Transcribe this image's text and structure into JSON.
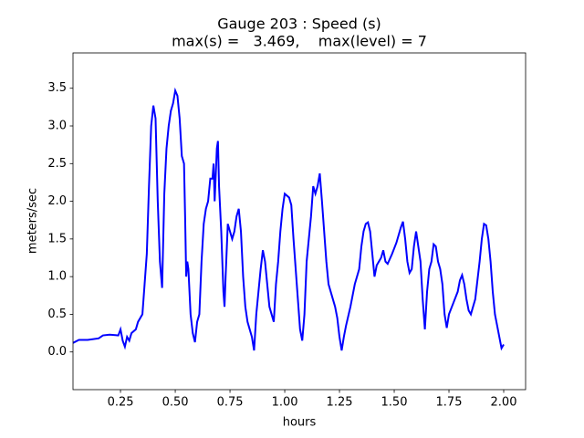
{
  "chart_data": {
    "type": "line",
    "title": "Gauge 203 : Speed (s)",
    "subtitle": "max(s) =   3.469,    max(level) = 7",
    "x_label": "hours",
    "y_label": "meters/sec",
    "color": "#0000ff",
    "xlim": [
      0.033,
      2.1
    ],
    "ylim": [
      -0.5,
      3.969
    ],
    "xticks": [
      0.25,
      {
        "value": 0.5,
        "label": "0.50"
      },
      0.75,
      {
        "value": 1,
        "label": "1.00"
      },
      1.25,
      {
        "value": 1.5,
        "label": "1.50"
      },
      1.75,
      {
        "value": 2,
        "label": "2.00"
      }
    ],
    "yticks": [
      {
        "value": 0,
        "label": "0.0"
      },
      0.5,
      {
        "value": 1,
        "label": "1.0"
      },
      1.5,
      {
        "value": 2,
        "label": "2.0"
      },
      2.5,
      {
        "value": 3,
        "label": "3.0"
      },
      3.5
    ],
    "x": [
      0.033,
      0.06,
      0.1,
      0.15,
      0.17,
      0.2,
      0.24,
      0.25,
      0.26,
      0.27,
      0.28,
      0.29,
      0.3,
      0.32,
      0.33,
      0.35,
      0.36,
      0.37,
      0.38,
      0.39,
      0.4,
      0.41,
      0.42,
      0.43,
      0.44,
      0.45,
      0.46,
      0.47,
      0.48,
      0.49,
      0.5,
      0.51,
      0.52,
      0.53,
      0.54,
      0.545,
      0.55,
      0.555,
      0.56,
      0.57,
      0.58,
      0.59,
      0.6,
      0.61,
      0.62,
      0.63,
      0.64,
      0.65,
      0.66,
      0.67,
      0.675,
      0.68,
      0.69,
      0.695,
      0.7,
      0.71,
      0.72,
      0.725,
      0.73,
      0.74,
      0.75,
      0.76,
      0.77,
      0.78,
      0.79,
      0.8,
      0.81,
      0.82,
      0.83,
      0.84,
      0.85,
      0.86,
      0.87,
      0.88,
      0.89,
      0.9,
      0.91,
      0.92,
      0.93,
      0.94,
      0.95,
      0.96,
      0.97,
      0.98,
      0.99,
      1.0,
      1.02,
      1.03,
      1.04,
      1.06,
      1.07,
      1.08,
      1.09,
      1.1,
      1.11,
      1.12,
      1.13,
      1.14,
      1.15,
      1.16,
      1.17,
      1.18,
      1.19,
      1.2,
      1.21,
      1.22,
      1.23,
      1.24,
      1.25,
      1.26,
      1.27,
      1.28,
      1.3,
      1.32,
      1.34,
      1.35,
      1.36,
      1.37,
      1.38,
      1.39,
      1.4,
      1.41,
      1.42,
      1.43,
      1.44,
      1.45,
      1.46,
      1.47,
      1.49,
      1.51,
      1.53,
      1.54,
      1.55,
      1.56,
      1.57,
      1.58,
      1.59,
      1.6,
      1.61,
      1.62,
      1.63,
      1.64,
      1.65,
      1.66,
      1.67,
      1.68,
      1.69,
      1.7,
      1.71,
      1.72,
      1.73,
      1.74,
      1.75,
      1.77,
      1.79,
      1.8,
      1.81,
      1.82,
      1.83,
      1.84,
      1.85,
      1.87,
      1.89,
      1.9,
      1.91,
      1.92,
      1.93,
      1.94,
      1.95,
      1.96,
      1.97,
      1.98,
      1.99,
      2.0
    ],
    "values": [
      0.12,
      0.16,
      0.16,
      0.18,
      0.22,
      0.23,
      0.22,
      0.3,
      0.15,
      0.07,
      0.2,
      0.15,
      0.25,
      0.3,
      0.4,
      0.5,
      0.9,
      1.3,
      2.2,
      3.0,
      3.27,
      3.1,
      2.0,
      1.2,
      0.85,
      2.1,
      2.7,
      3.0,
      3.2,
      3.3,
      3.469,
      3.4,
      3.1,
      2.6,
      2.5,
      1.8,
      1.0,
      1.2,
      1.1,
      0.5,
      0.25,
      0.13,
      0.4,
      0.5,
      1.2,
      1.7,
      1.9,
      2.0,
      2.3,
      2.3,
      2.5,
      2.0,
      2.7,
      2.8,
      2.2,
      1.6,
      0.8,
      0.6,
      1.0,
      1.7,
      1.6,
      1.5,
      1.6,
      1.8,
      1.9,
      1.6,
      1.0,
      0.6,
      0.4,
      0.3,
      0.2,
      0.02,
      0.5,
      0.8,
      1.1,
      1.35,
      1.2,
      0.9,
      0.6,
      0.5,
      0.4,
      0.9,
      1.2,
      1.6,
      1.9,
      2.1,
      2.05,
      1.95,
      1.5,
      0.7,
      0.3,
      0.15,
      0.5,
      1.2,
      1.5,
      1.8,
      2.2,
      2.1,
      2.2,
      2.37,
      2.0,
      1.6,
      1.2,
      0.9,
      0.8,
      0.7,
      0.6,
      0.45,
      0.2,
      0.02,
      0.2,
      0.35,
      0.6,
      0.9,
      1.1,
      1.4,
      1.6,
      1.7,
      1.72,
      1.6,
      1.3,
      1.0,
      1.15,
      1.2,
      1.25,
      1.35,
      1.2,
      1.17,
      1.3,
      1.45,
      1.65,
      1.73,
      1.5,
      1.2,
      1.05,
      1.1,
      1.4,
      1.6,
      1.4,
      1.2,
      0.7,
      0.3,
      0.8,
      1.1,
      1.2,
      1.43,
      1.4,
      1.2,
      1.1,
      0.9,
      0.5,
      0.32,
      0.5,
      0.65,
      0.8,
      0.95,
      1.02,
      0.9,
      0.7,
      0.55,
      0.5,
      0.7,
      1.2,
      1.5,
      1.7,
      1.68,
      1.5,
      1.2,
      0.8,
      0.5,
      0.35,
      0.2,
      0.05,
      0.1
    ]
  }
}
